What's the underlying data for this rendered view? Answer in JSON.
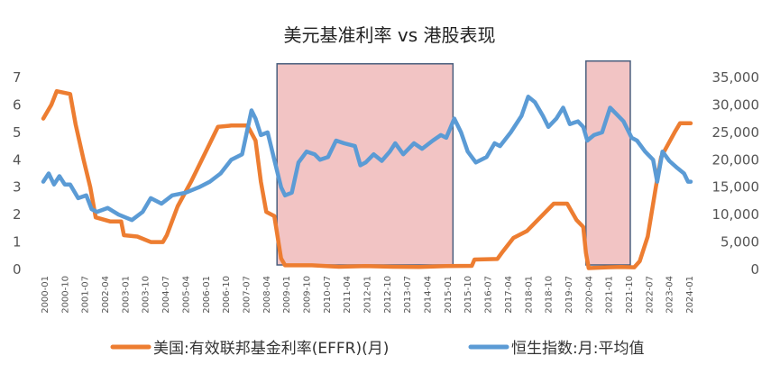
{
  "chart_data": {
    "type": "line",
    "title": "美元基准利率 vs 港股表现",
    "left_axis": {
      "range": [
        0,
        7
      ],
      "ticks": [
        "0",
        "1",
        "2",
        "3",
        "4",
        "5",
        "6",
        "7"
      ]
    },
    "right_axis": {
      "range": [
        0,
        35000
      ],
      "ticks": [
        "0",
        "5,000",
        "10,000",
        "15,000",
        "20,000",
        "25,000",
        "30,000",
        "35,000"
      ]
    },
    "x_tick_labels": [
      "2000-01",
      "2000-10",
      "2001-07",
      "2002-04",
      "2003-01",
      "2003-10",
      "2004-07",
      "2005-04",
      "2006-01",
      "2006-10",
      "2007-07",
      "2008-04",
      "2009-01",
      "2009-10",
      "2010-07",
      "2011-04",
      "2012-01",
      "2012-10",
      "2013-07",
      "2014-04",
      "2015-01",
      "2015-10",
      "2016-07",
      "2017-04",
      "2018-01",
      "2018-10",
      "2019-07",
      "2020-04",
      "2021-01",
      "2021-10",
      "2022-07",
      "2023-04",
      "2024-01"
    ],
    "grid": false,
    "legend_position": "bottom",
    "series": [
      {
        "name": "美国:有效联邦基金利率(EFFR)(月)",
        "axis": "left",
        "color": "#ED7D31",
        "points": [
          [
            2000.0,
            5.5
          ],
          [
            2000.3,
            6.0
          ],
          [
            2000.5,
            6.5
          ],
          [
            2001.0,
            6.4
          ],
          [
            2001.2,
            5.3
          ],
          [
            2001.5,
            4.0
          ],
          [
            2001.75,
            3.0
          ],
          [
            2001.95,
            1.9
          ],
          [
            2002.5,
            1.75
          ],
          [
            2002.9,
            1.75
          ],
          [
            2003.0,
            1.25
          ],
          [
            2003.5,
            1.2
          ],
          [
            2004.0,
            1.0
          ],
          [
            2004.45,
            1.0
          ],
          [
            2004.6,
            1.25
          ],
          [
            2005.0,
            2.3
          ],
          [
            2005.5,
            3.2
          ],
          [
            2006.0,
            4.2
          ],
          [
            2006.5,
            5.2
          ],
          [
            2007.0,
            5.25
          ],
          [
            2007.6,
            5.25
          ],
          [
            2007.9,
            4.7
          ],
          [
            2008.1,
            3.2
          ],
          [
            2008.3,
            2.1
          ],
          [
            2008.6,
            1.95
          ],
          [
            2008.85,
            0.4
          ],
          [
            2009.0,
            0.15
          ],
          [
            2010.0,
            0.15
          ],
          [
            2011.0,
            0.1
          ],
          [
            2012.0,
            0.12
          ],
          [
            2013.0,
            0.1
          ],
          [
            2014.0,
            0.09
          ],
          [
            2015.0,
            0.12
          ],
          [
            2015.95,
            0.13
          ],
          [
            2016.05,
            0.36
          ],
          [
            2016.9,
            0.38
          ],
          [
            2017.1,
            0.65
          ],
          [
            2017.5,
            1.15
          ],
          [
            2018.0,
            1.4
          ],
          [
            2018.5,
            1.9
          ],
          [
            2019.0,
            2.4
          ],
          [
            2019.5,
            2.4
          ],
          [
            2019.85,
            1.8
          ],
          [
            2020.1,
            1.55
          ],
          [
            2020.2,
            0.6
          ],
          [
            2020.3,
            0.05
          ],
          [
            2021.0,
            0.08
          ],
          [
            2021.5,
            0.09
          ],
          [
            2022.0,
            0.08
          ],
          [
            2022.2,
            0.3
          ],
          [
            2022.5,
            1.2
          ],
          [
            2022.8,
            3.0
          ],
          [
            2023.0,
            4.1
          ],
          [
            2023.5,
            5.0
          ],
          [
            2023.7,
            5.33
          ],
          [
            2024.1,
            5.33
          ]
        ]
      },
      {
        "name": "恒生指数:月:平均值",
        "axis": "right",
        "color": "#5B9BD5",
        "points": [
          [
            2000.0,
            16000
          ],
          [
            2000.2,
            17500
          ],
          [
            2000.4,
            15500
          ],
          [
            2000.6,
            17000
          ],
          [
            2000.8,
            15500
          ],
          [
            2001.0,
            15500
          ],
          [
            2001.3,
            13000
          ],
          [
            2001.6,
            13500
          ],
          [
            2001.8,
            11000
          ],
          [
            2002.0,
            10500
          ],
          [
            2002.4,
            11200
          ],
          [
            2002.8,
            10000
          ],
          [
            2003.3,
            9000
          ],
          [
            2003.7,
            10500
          ],
          [
            2004.0,
            13000
          ],
          [
            2004.4,
            12000
          ],
          [
            2004.8,
            13500
          ],
          [
            2005.3,
            14000
          ],
          [
            2005.8,
            15000
          ],
          [
            2006.2,
            16000
          ],
          [
            2006.6,
            17500
          ],
          [
            2007.0,
            20000
          ],
          [
            2007.4,
            21000
          ],
          [
            2007.75,
            29000
          ],
          [
            2007.9,
            27500
          ],
          [
            2008.1,
            24500
          ],
          [
            2008.35,
            25000
          ],
          [
            2008.6,
            20000
          ],
          [
            2008.85,
            15000
          ],
          [
            2009.0,
            13500
          ],
          [
            2009.25,
            14000
          ],
          [
            2009.5,
            19500
          ],
          [
            2009.8,
            21500
          ],
          [
            2010.1,
            21000
          ],
          [
            2010.3,
            20000
          ],
          [
            2010.6,
            20500
          ],
          [
            2010.9,
            23500
          ],
          [
            2011.2,
            23000
          ],
          [
            2011.6,
            22500
          ],
          [
            2011.8,
            19000
          ],
          [
            2012.0,
            19500
          ],
          [
            2012.3,
            21000
          ],
          [
            2012.6,
            19800
          ],
          [
            2012.9,
            21500
          ],
          [
            2013.1,
            23000
          ],
          [
            2013.4,
            21000
          ],
          [
            2013.8,
            23000
          ],
          [
            2014.1,
            22000
          ],
          [
            2014.5,
            23500
          ],
          [
            2014.8,
            24500
          ],
          [
            2015.0,
            24000
          ],
          [
            2015.3,
            27500
          ],
          [
            2015.55,
            25000
          ],
          [
            2015.8,
            21500
          ],
          [
            2016.1,
            19500
          ],
          [
            2016.5,
            20500
          ],
          [
            2016.8,
            23000
          ],
          [
            2017.0,
            22500
          ],
          [
            2017.4,
            25000
          ],
          [
            2017.8,
            28000
          ],
          [
            2018.05,
            31500
          ],
          [
            2018.3,
            30500
          ],
          [
            2018.6,
            28000
          ],
          [
            2018.8,
            26000
          ],
          [
            2019.1,
            27500
          ],
          [
            2019.35,
            29500
          ],
          [
            2019.6,
            26500
          ],
          [
            2019.9,
            27000
          ],
          [
            2020.1,
            26000
          ],
          [
            2020.25,
            23500
          ],
          [
            2020.5,
            24500
          ],
          [
            2020.8,
            25000
          ],
          [
            2021.1,
            29500
          ],
          [
            2021.3,
            28500
          ],
          [
            2021.6,
            27000
          ],
          [
            2021.9,
            24000
          ],
          [
            2022.1,
            23500
          ],
          [
            2022.4,
            21500
          ],
          [
            2022.7,
            20000
          ],
          [
            2022.85,
            16000
          ],
          [
            2023.05,
            21500
          ],
          [
            2023.3,
            19800
          ],
          [
            2023.6,
            18500
          ],
          [
            2023.85,
            17500
          ],
          [
            2024.0,
            16000
          ],
          [
            2024.1,
            16000
          ]
        ]
      }
    ],
    "highlights": [
      {
        "x_start": 2008.7,
        "x_end": 2015.25,
        "y_top": 7.5
      },
      {
        "x_start": 2020.2,
        "x_end": 2021.85,
        "y_top": 7.6
      }
    ]
  },
  "colors": {
    "effr": "#ED7D31",
    "hsi": "#5B9BD5",
    "highlight_fill": "#F2C4C4",
    "highlight_stroke": "#4A5F7E"
  }
}
